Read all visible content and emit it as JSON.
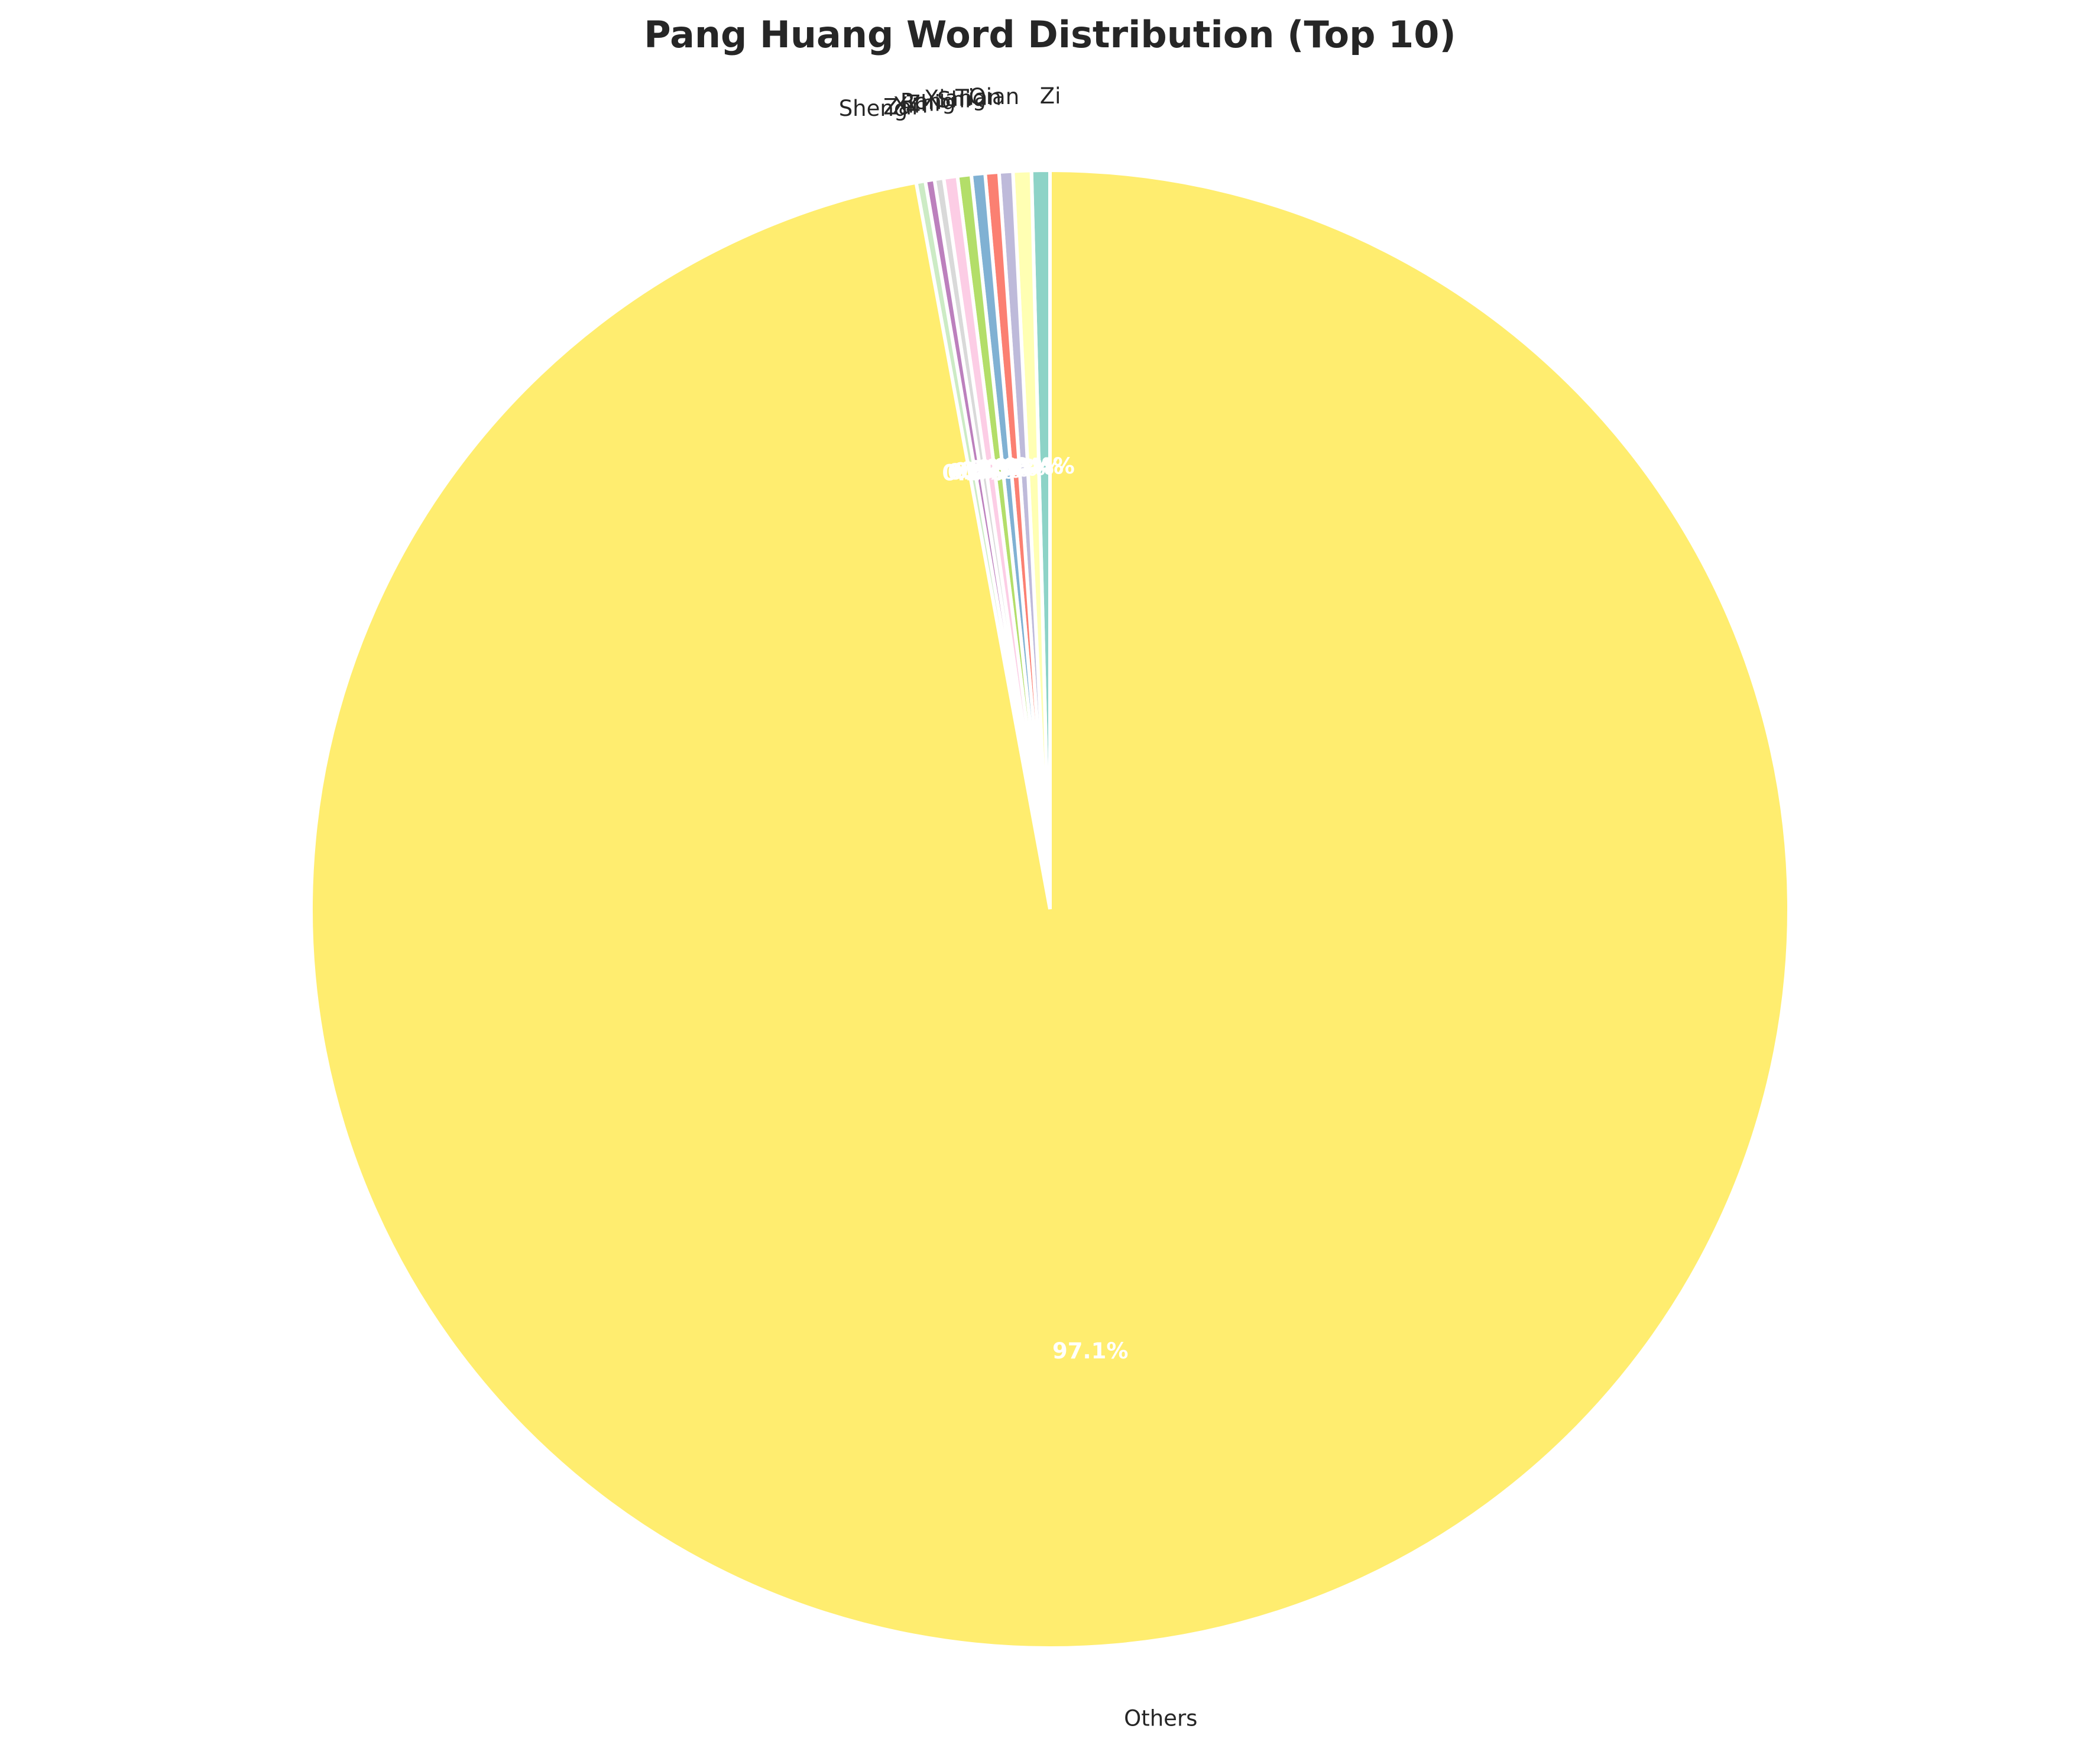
{
  "chart_data": {
    "type": "pie",
    "title": "Pang Huang Word Distribution (Top 10)",
    "start_angle_deg": 90,
    "direction": "counterclockwise",
    "slices": [
      {
        "label": "Zi",
        "value": 0.4,
        "pct": "0.4%",
        "color": "#8dd3c7"
      },
      {
        "label": "Qian",
        "value": 0.4,
        "pct": "0.4%",
        "color": "#ffffb3"
      },
      {
        "label": "Tian",
        "value": 0.3,
        "pct": "0.3%",
        "color": "#bebada"
      },
      {
        "label": "Xiang",
        "value": 0.3,
        "pct": "0.3%",
        "color": "#fb8072"
      },
      {
        "label": "Shi",
        "value": 0.3,
        "pct": "0.3%",
        "color": "#80b1d3"
      },
      {
        "label": "Rong",
        "value": 0.3,
        "pct": "0.3%",
        "color": "#b3de69"
      },
      {
        "label": "Zhi",
        "value": 0.3,
        "pct": "0.3%",
        "color": "#fccde5"
      },
      {
        "label": "Xin",
        "value": 0.2,
        "pct": "0.2%",
        "color": "#d9d9d9"
      },
      {
        "label": "Zai",
        "value": 0.2,
        "pct": "0.2%",
        "color": "#bc80bd"
      },
      {
        "label": "Sheng",
        "value": 0.2,
        "pct": "0.2%",
        "color": "#ccebc5"
      },
      {
        "label": "Others",
        "value": 97.1,
        "pct": "97.1%",
        "color": "#ffed6f"
      }
    ]
  }
}
